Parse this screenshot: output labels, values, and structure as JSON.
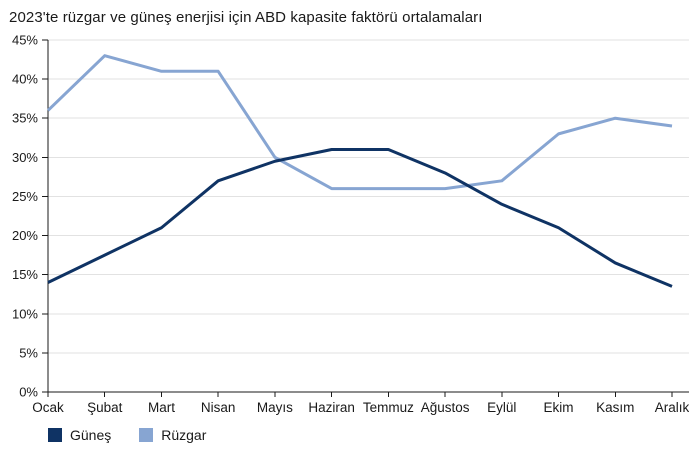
{
  "chart_data": {
    "type": "line",
    "title": "2023'te rüzgar ve güneş enerjisi için ABD kapasite faktörü ortalamaları",
    "xlabel": "",
    "ylabel": "",
    "categories": [
      "Ocak",
      "Şubat",
      "Mart",
      "Nisan",
      "Mayıs",
      "Haziran",
      "Temmuz",
      "Ağustos",
      "Eylül",
      "Ekim",
      "Kasım",
      "Aralık"
    ],
    "series": [
      {
        "name": "Güneş",
        "color": "#0f3364",
        "values": [
          14,
          17.5,
          21,
          27,
          29.5,
          31,
          31,
          28,
          24,
          21,
          16.5,
          13.5
        ]
      },
      {
        "name": "Rüzgar",
        "color": "#87a5d2",
        "values": [
          36,
          43,
          41,
          41,
          30,
          26,
          26,
          26,
          27,
          33,
          35,
          34
        ]
      }
    ],
    "ylim": [
      0,
      45
    ],
    "ytick_labels": [
      "0%",
      "5%",
      "10%",
      "15%",
      "20%",
      "25%",
      "30%",
      "35%",
      "40%",
      "45%"
    ],
    "grid": "horizontal",
    "gridline_color": "#e2e2e2",
    "axis_color": "#1a1a1a",
    "text_color": "#1a1a1a",
    "legend_position": "bottom-left"
  }
}
